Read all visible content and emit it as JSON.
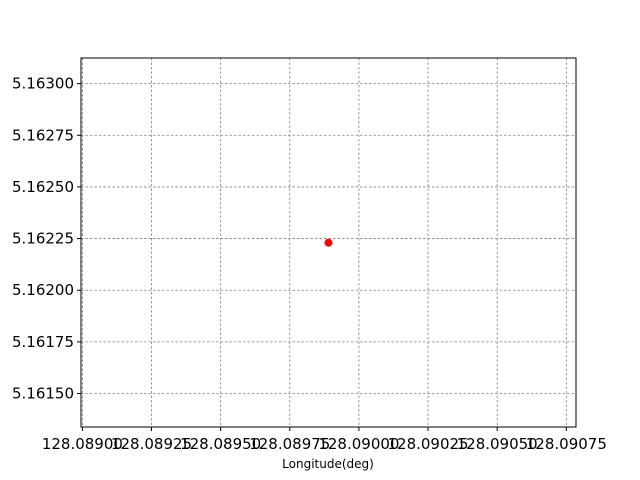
{
  "chart_data": {
    "type": "scatter",
    "title": "",
    "xlabel": "Longitude(deg)",
    "ylabel": "",
    "xlim": [
      128.088995,
      128.090785
    ],
    "ylim": [
      5.161338,
      5.163124
    ],
    "x_ticks": [
      128.089,
      128.08925,
      128.0895,
      128.08975,
      128.09,
      128.09025,
      128.0905,
      128.09075
    ],
    "x_tick_labels": [
      "128.08900",
      "128.08925",
      "128.08950",
      "128.08975",
      "128.09000",
      "128.09025",
      "128.09050",
      "128.09075"
    ],
    "y_ticks": [
      5.1615,
      5.16175,
      5.162,
      5.16225,
      5.1625,
      5.16275,
      5.163
    ],
    "y_tick_labels": [
      "5.16150",
      "5.16175",
      "5.16200",
      "5.16225",
      "5.16250",
      "5.16275",
      "5.16300"
    ],
    "grid": true,
    "series": [
      {
        "x": [
          128.08989
        ],
        "y": [
          5.16223
        ],
        "color": "#ff0000"
      }
    ]
  }
}
